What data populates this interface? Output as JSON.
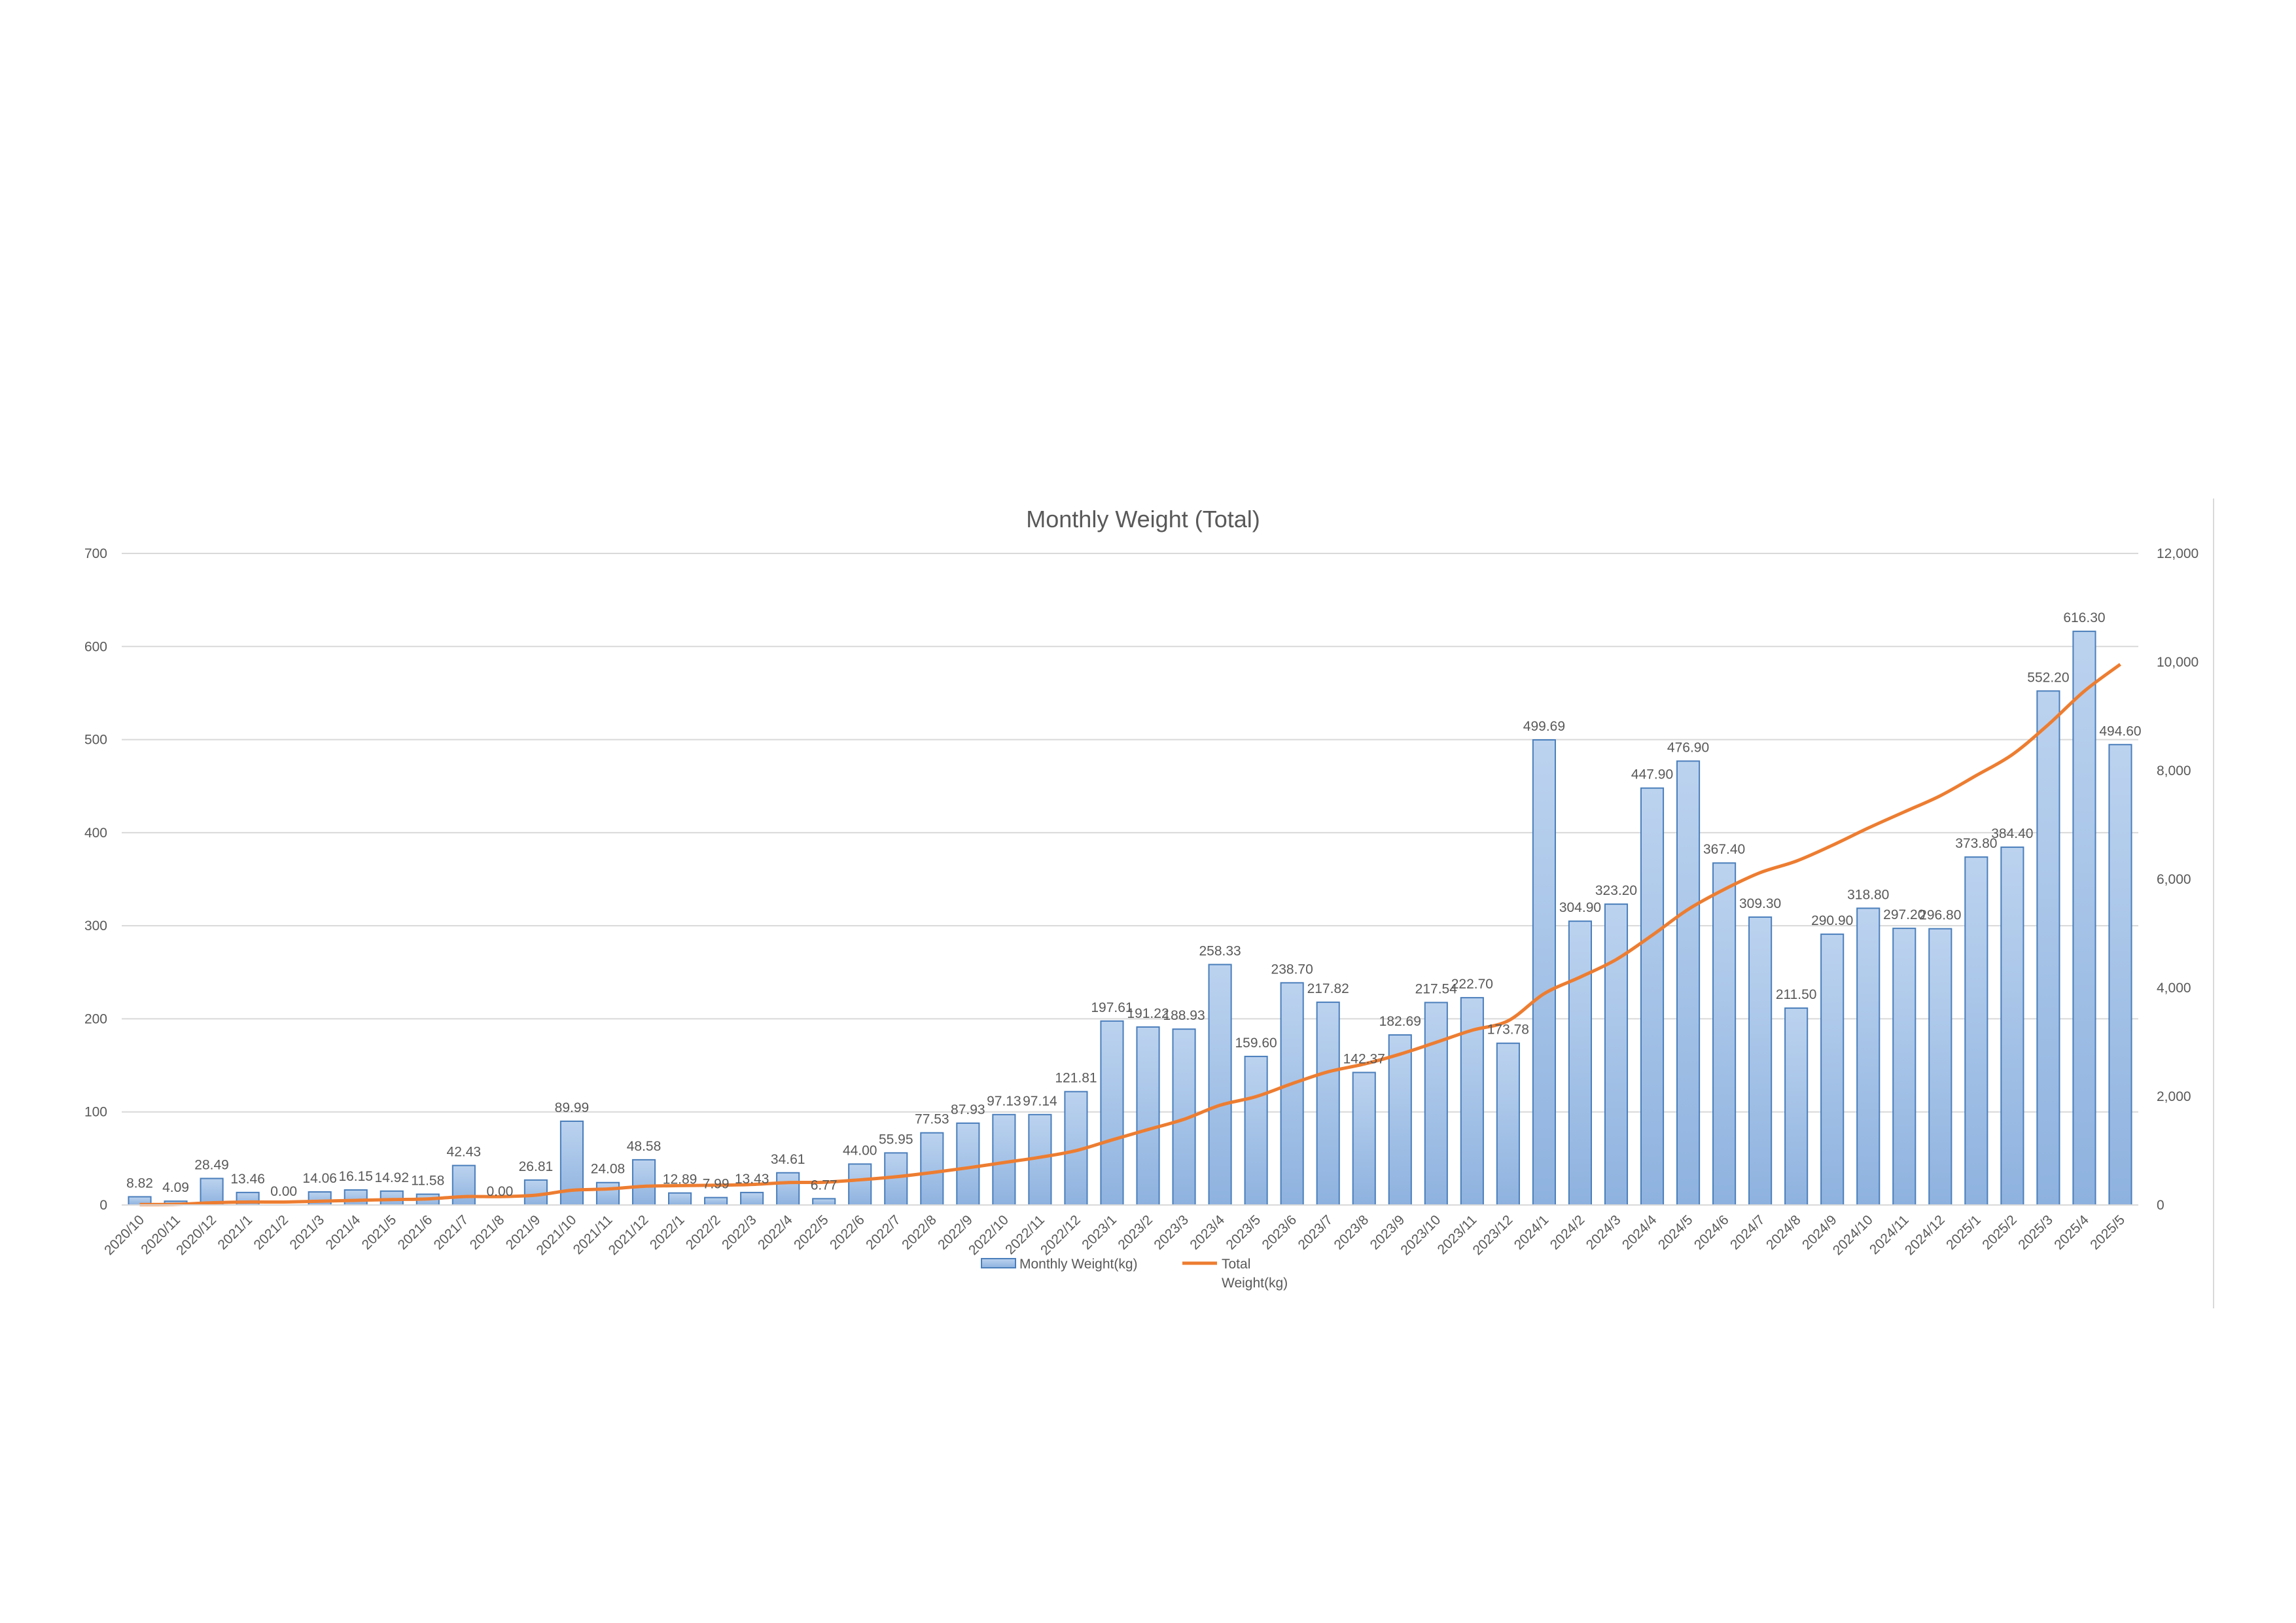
{
  "chart_data": {
    "type": "bar",
    "title": "Monthly Weight (Total)",
    "categories": [
      "2020/10",
      "2020/11",
      "2020/12",
      "2021/1",
      "2021/2",
      "2021/3",
      "2021/4",
      "2021/5",
      "2021/6",
      "2021/7",
      "2021/8",
      "2021/9",
      "2021/10",
      "2021/11",
      "2021/12",
      "2022/1",
      "2022/2",
      "2022/3",
      "2022/4",
      "2022/5",
      "2022/6",
      "2022/7",
      "2022/8",
      "2022/9",
      "2022/10",
      "2022/11",
      "2022/12",
      "2023/1",
      "2023/2",
      "2023/3",
      "2023/4",
      "2023/5",
      "2023/6",
      "2023/7",
      "2023/8",
      "2023/9",
      "2023/10",
      "2023/11",
      "2023/12",
      "2024/1",
      "2024/2",
      "2024/3",
      "2024/4",
      "2024/5",
      "2024/6",
      "2024/7",
      "2024/8",
      "2024/9",
      "2024/10",
      "2024/11",
      "2024/12",
      "2025/1",
      "2025/2",
      "2025/3",
      "2025/4",
      "2025/5"
    ],
    "series": [
      {
        "name": "Monthly Weight(kg)",
        "type": "bar",
        "axis": "left",
        "values": [
          8.82,
          4.09,
          28.49,
          13.46,
          0.0,
          14.06,
          16.15,
          14.92,
          11.58,
          42.43,
          0.0,
          26.81,
          89.99,
          24.08,
          48.58,
          12.89,
          7.99,
          13.43,
          34.61,
          6.77,
          44.0,
          55.95,
          77.53,
          87.93,
          97.13,
          97.14,
          121.81,
          197.61,
          191.22,
          188.93,
          258.33,
          159.6,
          238.7,
          217.82,
          142.37,
          182.69,
          217.54,
          222.7,
          173.78,
          499.69,
          304.9,
          323.2,
          447.9,
          476.9,
          367.4,
          309.3,
          211.5,
          290.9,
          318.8,
          297.2,
          296.8,
          373.8,
          384.4,
          552.2,
          616.3,
          494.6
        ],
        "labels": [
          "8.82",
          "4.09",
          "28.49",
          "13.46",
          "0.00",
          "14.06",
          "16.15",
          "14.92",
          "11.58",
          "42.43",
          "0.00",
          "26.81",
          "89.99",
          "24.08",
          "48.58",
          "12.89",
          "7.99",
          "13.43",
          "34.61",
          "6.77",
          "44.00",
          "55.95",
          "77.53",
          "87.93",
          "97.13",
          "97.14",
          "121.81",
          "197.61",
          "191.22",
          "188.93",
          "258.33",
          "159.60",
          "238.70",
          "217.82",
          "142.37",
          "182.69",
          "217.54",
          "222.70",
          "173.78",
          "499.69",
          "304.90",
          "323.20",
          "447.90",
          "476.90",
          "367.40",
          "309.30",
          "211.50",
          "290.90",
          "318.80",
          "297.20",
          "296.80",
          "373.80",
          "384.40",
          "552.20",
          "616.30",
          "494.60"
        ]
      },
      {
        "name": "Total Weight(kg)",
        "type": "line",
        "axis": "right",
        "values": [
          8.82,
          12.91,
          41.4,
          54.86,
          54.86,
          68.92,
          85.07,
          99.99,
          111.57,
          154.0,
          154.0,
          180.81,
          270.8,
          294.88,
          343.46,
          356.35,
          364.34,
          377.77,
          412.38,
          419.15,
          463.15,
          519.1,
          596.63,
          684.56,
          781.69,
          878.83,
          1000.64,
          1198.25,
          1389.47,
          1578.4,
          1836.73,
          1996.33,
          2235.03,
          2452.85,
          2595.22,
          2777.91,
          2995.45,
          3218.15,
          3391.93,
          3891.62,
          4196.52,
          4519.72,
          4967.62,
          5444.52,
          5811.92,
          6121.22,
          6332.72,
          6623.62,
          6942.42,
          7239.62,
          7536.42,
          7910.22,
          8294.62,
          8846.82,
          9463.12,
          9957.72
        ]
      }
    ],
    "left_axis": {
      "ylim": [
        0,
        700
      ],
      "ticks": [
        "0",
        "100",
        "200",
        "300",
        "400",
        "500",
        "600",
        "700"
      ]
    },
    "right_axis": {
      "ylim": [
        0,
        12000
      ],
      "ticks": [
        "0",
        "2,000",
        "4,000",
        "6,000",
        "8,000",
        "10,000",
        "12,000"
      ]
    },
    "grid": true,
    "legend_position": "bottom",
    "legend": [
      {
        "label": "Monthly Weight(kg)",
        "lines": [
          "Monthly Weight(kg)"
        ]
      },
      {
        "label": "Total Weight(kg)",
        "lines": [
          "Total",
          "Weight(kg)"
        ]
      }
    ],
    "colors": {
      "bar_fill_top": "#b4cdec",
      "bar_fill_bottom": "#8fb3e0",
      "bar_stroke": "#4a7ebb",
      "line": "#ed7d31",
      "grid": "#d9d9d9",
      "text": "#595959"
    }
  }
}
